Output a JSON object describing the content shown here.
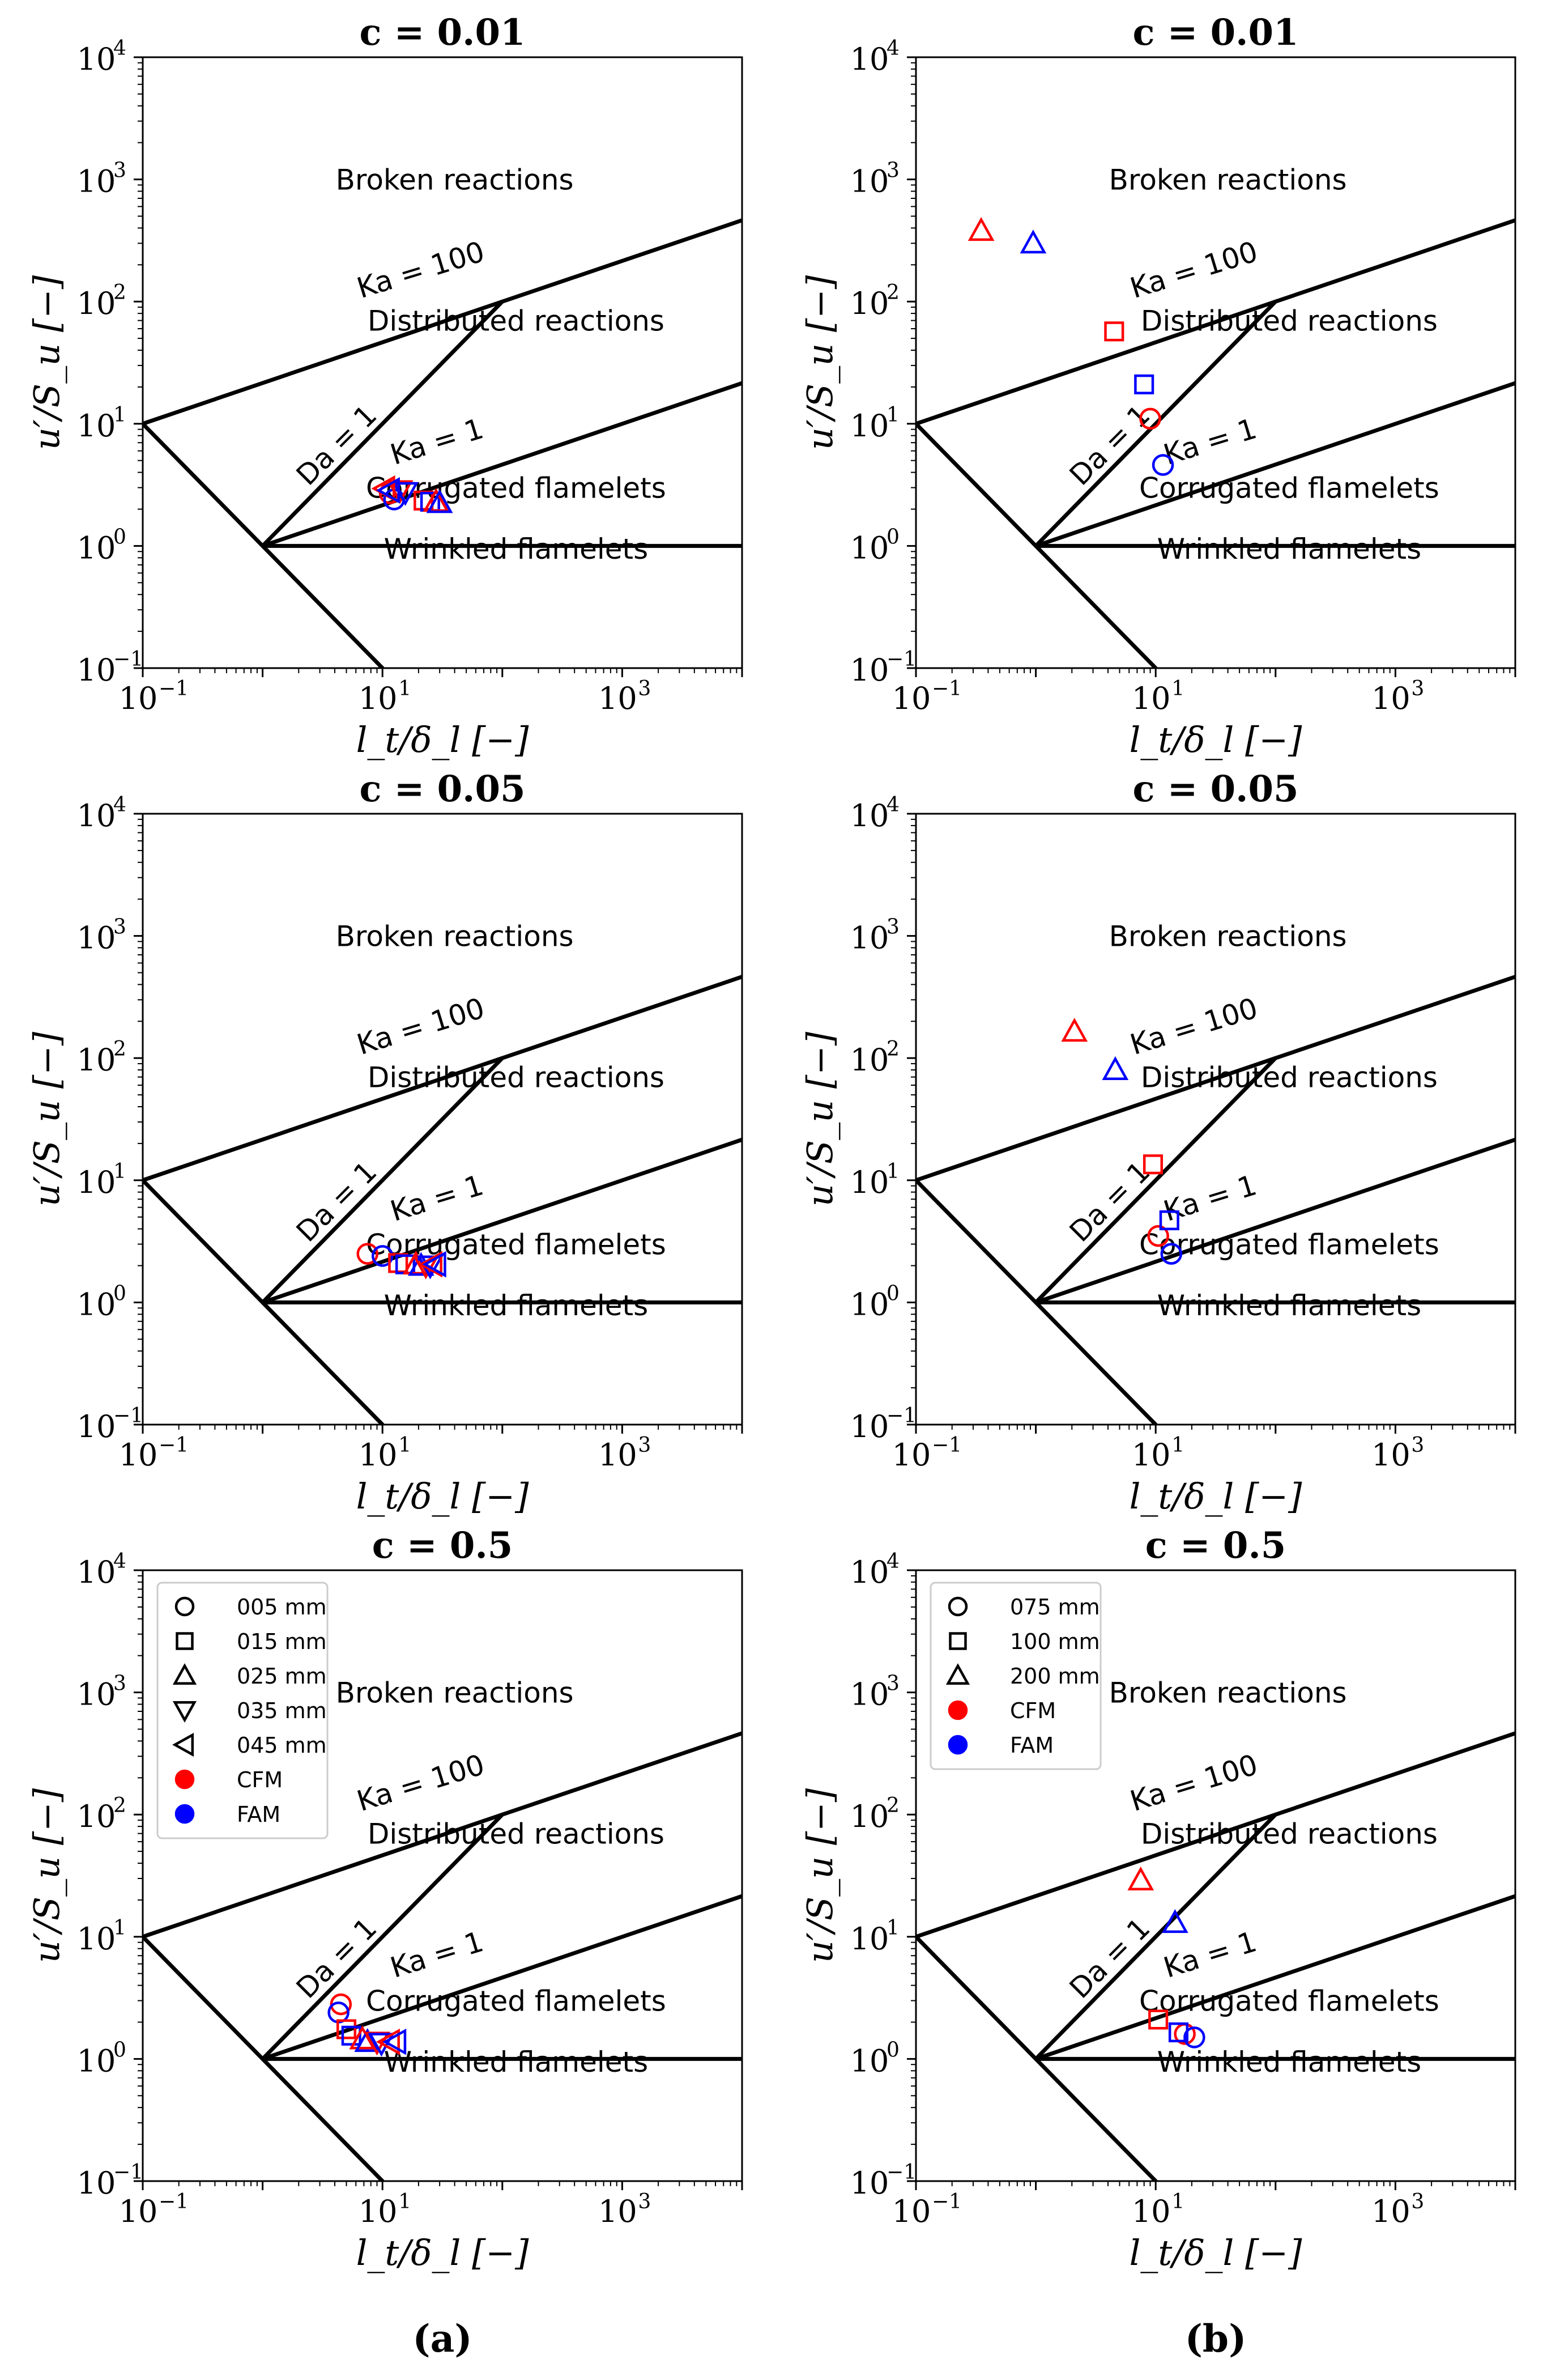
{
  "chart_data": [
    {
      "type": "scatter",
      "title": "c = 0.01",
      "xlabel": "l_t/δ_l [−]",
      "ylabel": "u′/S_u [−]",
      "xscale": "log",
      "yscale": "log",
      "xlim": [
        0.1,
        10000
      ],
      "ylim": [
        0.1,
        10000
      ],
      "xticks": [
        {
          "base": "10",
          "exp": "−1"
        },
        {
          "base": "10",
          "exp": "1"
        },
        {
          "base": "10",
          "exp": "3"
        }
      ],
      "yticks": [
        {
          "base": "10",
          "exp": "−1"
        },
        {
          "base": "10",
          "exp": "0"
        },
        {
          "base": "10",
          "exp": "1"
        },
        {
          "base": "10",
          "exp": "2"
        },
        {
          "base": "10",
          "exp": "3"
        },
        {
          "base": "10",
          "exp": "4"
        }
      ],
      "regions": [
        "Broken reactions",
        "Distributed reactions",
        "Corrugated flamelets",
        "Wrinkled flamelets"
      ],
      "line_labels": [
        "Ka = 100",
        "Ka = 1",
        "Da = 1"
      ],
      "series": [
        {
          "name": "005 mm",
          "marker": "circle",
          "points": [
            {
              "model": "CFM",
              "x": 11.5,
              "y": 2.7
            },
            {
              "model": "FAM",
              "x": 12.5,
              "y": 2.4
            }
          ]
        },
        {
          "name": "015 mm",
          "marker": "square",
          "points": [
            {
              "model": "CFM",
              "x": 22,
              "y": 2.35
            },
            {
              "model": "FAM",
              "x": 25,
              "y": 2.3
            }
          ]
        },
        {
          "name": "025 mm",
          "marker": "triangle-up",
          "points": [
            {
              "model": "CFM",
              "x": 28,
              "y": 2.3
            },
            {
              "model": "FAM",
              "x": 30,
              "y": 2.25
            }
          ]
        },
        {
          "name": "035 mm",
          "marker": "triangle-down",
          "points": [
            {
              "model": "CFM",
              "x": 14,
              "y": 2.85
            },
            {
              "model": "FAM",
              "x": 15.5,
              "y": 2.75
            }
          ]
        },
        {
          "name": "045 mm",
          "marker": "triangle-left",
          "points": [
            {
              "model": "CFM",
              "x": 10.5,
              "y": 2.95
            },
            {
              "model": "FAM",
              "x": 11.5,
              "y": 2.85
            }
          ]
        }
      ]
    },
    {
      "type": "scatter",
      "title": "c = 0.01",
      "xlabel": "l_t/δ_l [−]",
      "ylabel": "u′/S_u [−]",
      "xscale": "log",
      "yscale": "log",
      "xlim": [
        0.1,
        10000
      ],
      "ylim": [
        0.1,
        10000
      ],
      "xticks": [
        {
          "base": "10",
          "exp": "−1"
        },
        {
          "base": "10",
          "exp": "1"
        },
        {
          "base": "10",
          "exp": "3"
        }
      ],
      "yticks": [
        {
          "base": "10",
          "exp": "−1"
        },
        {
          "base": "10",
          "exp": "0"
        },
        {
          "base": "10",
          "exp": "1"
        },
        {
          "base": "10",
          "exp": "2"
        },
        {
          "base": "10",
          "exp": "3"
        },
        {
          "base": "10",
          "exp": "4"
        }
      ],
      "regions": [
        "Broken reactions",
        "Distributed reactions",
        "Corrugated flamelets",
        "Wrinkled flamelets"
      ],
      "line_labels": [
        "Ka = 100",
        "Ka = 1",
        "Da = 1"
      ],
      "series": [
        {
          "name": "075 mm",
          "marker": "circle",
          "points": [
            {
              "model": "CFM",
              "x": 9,
              "y": 11
            },
            {
              "model": "FAM",
              "x": 11.5,
              "y": 4.6
            }
          ]
        },
        {
          "name": "100 mm",
          "marker": "square",
          "points": [
            {
              "model": "CFM",
              "x": 4.5,
              "y": 57
            },
            {
              "model": "FAM",
              "x": 8,
              "y": 21
            }
          ]
        },
        {
          "name": "200 mm",
          "marker": "triangle-up",
          "points": [
            {
              "model": "CFM",
              "x": 0.35,
              "y": 380
            },
            {
              "model": "FAM",
              "x": 0.95,
              "y": 300
            }
          ]
        }
      ]
    },
    {
      "type": "scatter",
      "title": "c = 0.05",
      "xlabel": "l_t/δ_l [−]",
      "ylabel": "u′/S_u [−]",
      "xscale": "log",
      "yscale": "log",
      "xlim": [
        0.1,
        10000
      ],
      "ylim": [
        0.1,
        10000
      ],
      "xticks": [
        {
          "base": "10",
          "exp": "−1"
        },
        {
          "base": "10",
          "exp": "1"
        },
        {
          "base": "10",
          "exp": "3"
        }
      ],
      "yticks": [
        {
          "base": "10",
          "exp": "−1"
        },
        {
          "base": "10",
          "exp": "0"
        },
        {
          "base": "10",
          "exp": "1"
        },
        {
          "base": "10",
          "exp": "2"
        },
        {
          "base": "10",
          "exp": "3"
        },
        {
          "base": "10",
          "exp": "4"
        }
      ],
      "regions": [
        "Broken reactions",
        "Distributed reactions",
        "Corrugated flamelets",
        "Wrinkled flamelets"
      ],
      "line_labels": [
        "Ka = 100",
        "Ka = 1",
        "Da = 1"
      ],
      "series": [
        {
          "name": "005 mm",
          "marker": "circle",
          "points": [
            {
              "model": "CFM",
              "x": 7.5,
              "y": 2.5
            },
            {
              "model": "FAM",
              "x": 10,
              "y": 2.4
            }
          ]
        },
        {
          "name": "015 mm",
          "marker": "square",
          "points": [
            {
              "model": "CFM",
              "x": 13.5,
              "y": 2.1
            },
            {
              "model": "FAM",
              "x": 15.5,
              "y": 2.05
            }
          ]
        },
        {
          "name": "025 mm",
          "marker": "triangle-up",
          "points": [
            {
              "model": "CFM",
              "x": 19,
              "y": 2.05
            },
            {
              "model": "FAM",
              "x": 21,
              "y": 2.0
            }
          ]
        },
        {
          "name": "035 mm",
          "marker": "triangle-down",
          "points": [
            {
              "model": "CFM",
              "x": 23,
              "y": 2.0
            },
            {
              "model": "FAM",
              "x": 25,
              "y": 2.0
            }
          ]
        },
        {
          "name": "045 mm",
          "marker": "triangle-left",
          "points": [
            {
              "model": "CFM",
              "x": 26,
              "y": 2.05
            },
            {
              "model": "FAM",
              "x": 28,
              "y": 2.05
            }
          ]
        }
      ]
    },
    {
      "type": "scatter",
      "title": "c = 0.05",
      "xlabel": "l_t/δ_l [−]",
      "ylabel": "u′/S_u [−]",
      "xscale": "log",
      "yscale": "log",
      "xlim": [
        0.1,
        10000
      ],
      "ylim": [
        0.1,
        10000
      ],
      "xticks": [
        {
          "base": "10",
          "exp": "−1"
        },
        {
          "base": "10",
          "exp": "1"
        },
        {
          "base": "10",
          "exp": "3"
        }
      ],
      "yticks": [
        {
          "base": "10",
          "exp": "−1"
        },
        {
          "base": "10",
          "exp": "0"
        },
        {
          "base": "10",
          "exp": "1"
        },
        {
          "base": "10",
          "exp": "2"
        },
        {
          "base": "10",
          "exp": "3"
        },
        {
          "base": "10",
          "exp": "4"
        }
      ],
      "regions": [
        "Broken reactions",
        "Distributed reactions",
        "Corrugated flamelets",
        "Wrinkled flamelets"
      ],
      "line_labels": [
        "Ka = 100",
        "Ka = 1",
        "Da = 1"
      ],
      "series": [
        {
          "name": "075 mm",
          "marker": "circle",
          "points": [
            {
              "model": "CFM",
              "x": 10.5,
              "y": 3.5
            },
            {
              "model": "FAM",
              "x": 13.5,
              "y": 2.5
            }
          ]
        },
        {
          "name": "100 mm",
          "marker": "square",
          "points": [
            {
              "model": "CFM",
              "x": 9.5,
              "y": 13.5
            },
            {
              "model": "FAM",
              "x": 13,
              "y": 4.7
            }
          ]
        },
        {
          "name": "200 mm",
          "marker": "triangle-up",
          "points": [
            {
              "model": "CFM",
              "x": 2.1,
              "y": 165
            },
            {
              "model": "FAM",
              "x": 4.6,
              "y": 80
            }
          ]
        }
      ]
    },
    {
      "type": "scatter",
      "title": "c = 0.5",
      "xlabel": "l_t/δ_l [−]",
      "ylabel": "u′/S_u [−]",
      "xscale": "log",
      "yscale": "log",
      "xlim": [
        0.1,
        10000
      ],
      "ylim": [
        0.1,
        10000
      ],
      "xticks": [
        {
          "base": "10",
          "exp": "−1"
        },
        {
          "base": "10",
          "exp": "1"
        },
        {
          "base": "10",
          "exp": "3"
        }
      ],
      "yticks": [
        {
          "base": "10",
          "exp": "−1"
        },
        {
          "base": "10",
          "exp": "0"
        },
        {
          "base": "10",
          "exp": "1"
        },
        {
          "base": "10",
          "exp": "2"
        },
        {
          "base": "10",
          "exp": "3"
        },
        {
          "base": "10",
          "exp": "4"
        }
      ],
      "regions": [
        "Broken reactions",
        "Distributed reactions",
        "Corrugated flamelets",
        "Wrinkled flamelets"
      ],
      "line_labels": [
        "Ka = 100",
        "Ka = 1",
        "Da = 1"
      ],
      "legend": {
        "location": "upper-left",
        "entries": [
          {
            "label": "005 mm",
            "marker": "circle",
            "color": "#000000",
            "filled": false
          },
          {
            "label": "015 mm",
            "marker": "square",
            "color": "#000000",
            "filled": false
          },
          {
            "label": "025 mm",
            "marker": "triangle-up",
            "color": "#000000",
            "filled": false
          },
          {
            "label": "035 mm",
            "marker": "triangle-down",
            "color": "#000000",
            "filled": false
          },
          {
            "label": "045 mm",
            "marker": "triangle-left",
            "color": "#000000",
            "filled": false
          },
          {
            "label": "CFM",
            "marker": "circle",
            "color": "#ff0000",
            "filled": true
          },
          {
            "label": "FAM",
            "marker": "circle",
            "color": "#0000ff",
            "filled": true
          }
        ]
      },
      "series": [
        {
          "name": "005 mm",
          "marker": "circle",
          "points": [
            {
              "model": "CFM",
              "x": 4.5,
              "y": 2.8
            },
            {
              "model": "FAM",
              "x": 4.3,
              "y": 2.4
            }
          ]
        },
        {
          "name": "015 mm",
          "marker": "square",
          "points": [
            {
              "model": "CFM",
              "x": 5.0,
              "y": 1.75
            },
            {
              "model": "FAM",
              "x": 5.5,
              "y": 1.55
            }
          ]
        },
        {
          "name": "025 mm",
          "marker": "triangle-up",
          "points": [
            {
              "model": "CFM",
              "x": 6.8,
              "y": 1.45
            },
            {
              "model": "FAM",
              "x": 7.5,
              "y": 1.38
            }
          ]
        },
        {
          "name": "035 mm",
          "marker": "triangle-down",
          "points": [
            {
              "model": "CFM",
              "x": 9.0,
              "y": 1.38
            },
            {
              "model": "FAM",
              "x": 9.8,
              "y": 1.35
            }
          ]
        },
        {
          "name": "045 mm",
          "marker": "triangle-left",
          "points": [
            {
              "model": "CFM",
              "x": 11.5,
              "y": 1.38
            },
            {
              "model": "FAM",
              "x": 13.0,
              "y": 1.38
            }
          ]
        }
      ]
    },
    {
      "type": "scatter",
      "title": "c = 0.5",
      "xlabel": "l_t/δ_l [−]",
      "ylabel": "u′/S_u [−]",
      "xscale": "log",
      "yscale": "log",
      "xlim": [
        0.1,
        10000
      ],
      "ylim": [
        0.1,
        10000
      ],
      "xticks": [
        {
          "base": "10",
          "exp": "−1"
        },
        {
          "base": "10",
          "exp": "1"
        },
        {
          "base": "10",
          "exp": "3"
        }
      ],
      "yticks": [
        {
          "base": "10",
          "exp": "−1"
        },
        {
          "base": "10",
          "exp": "0"
        },
        {
          "base": "10",
          "exp": "1"
        },
        {
          "base": "10",
          "exp": "2"
        },
        {
          "base": "10",
          "exp": "3"
        },
        {
          "base": "10",
          "exp": "4"
        }
      ],
      "regions": [
        "Broken reactions",
        "Distributed reactions",
        "Corrugated flamelets",
        "Wrinkled flamelets"
      ],
      "line_labels": [
        "Ka = 100",
        "Ka = 1",
        "Da = 1"
      ],
      "legend": {
        "location": "upper-left",
        "entries": [
          {
            "label": "075 mm",
            "marker": "circle",
            "color": "#000000",
            "filled": false
          },
          {
            "label": "100 mm",
            "marker": "square",
            "color": "#000000",
            "filled": false
          },
          {
            "label": "200 mm",
            "marker": "triangle-up",
            "color": "#000000",
            "filled": false
          },
          {
            "label": "CFM",
            "marker": "circle",
            "color": "#ff0000",
            "filled": true
          },
          {
            "label": "FAM",
            "marker": "circle",
            "color": "#0000ff",
            "filled": true
          }
        ]
      },
      "series": [
        {
          "name": "075 mm",
          "marker": "circle",
          "points": [
            {
              "model": "CFM",
              "x": 17.5,
              "y": 1.6
            },
            {
              "model": "FAM",
              "x": 21,
              "y": 1.5
            }
          ]
        },
        {
          "name": "100 mm",
          "marker": "square",
          "points": [
            {
              "model": "CFM",
              "x": 10.5,
              "y": 2.1
            },
            {
              "model": "FAM",
              "x": 15.5,
              "y": 1.65
            }
          ]
        },
        {
          "name": "200 mm",
          "marker": "triangle-up",
          "points": [
            {
              "model": "CFM",
              "x": 7.5,
              "y": 29
            },
            {
              "model": "FAM",
              "x": 14.5,
              "y": 13
            }
          ]
        }
      ]
    }
  ],
  "model_colors": {
    "CFM": "#ff0000",
    "FAM": "#0000ff"
  },
  "panel_labels": [
    "(a)",
    "(b)"
  ]
}
